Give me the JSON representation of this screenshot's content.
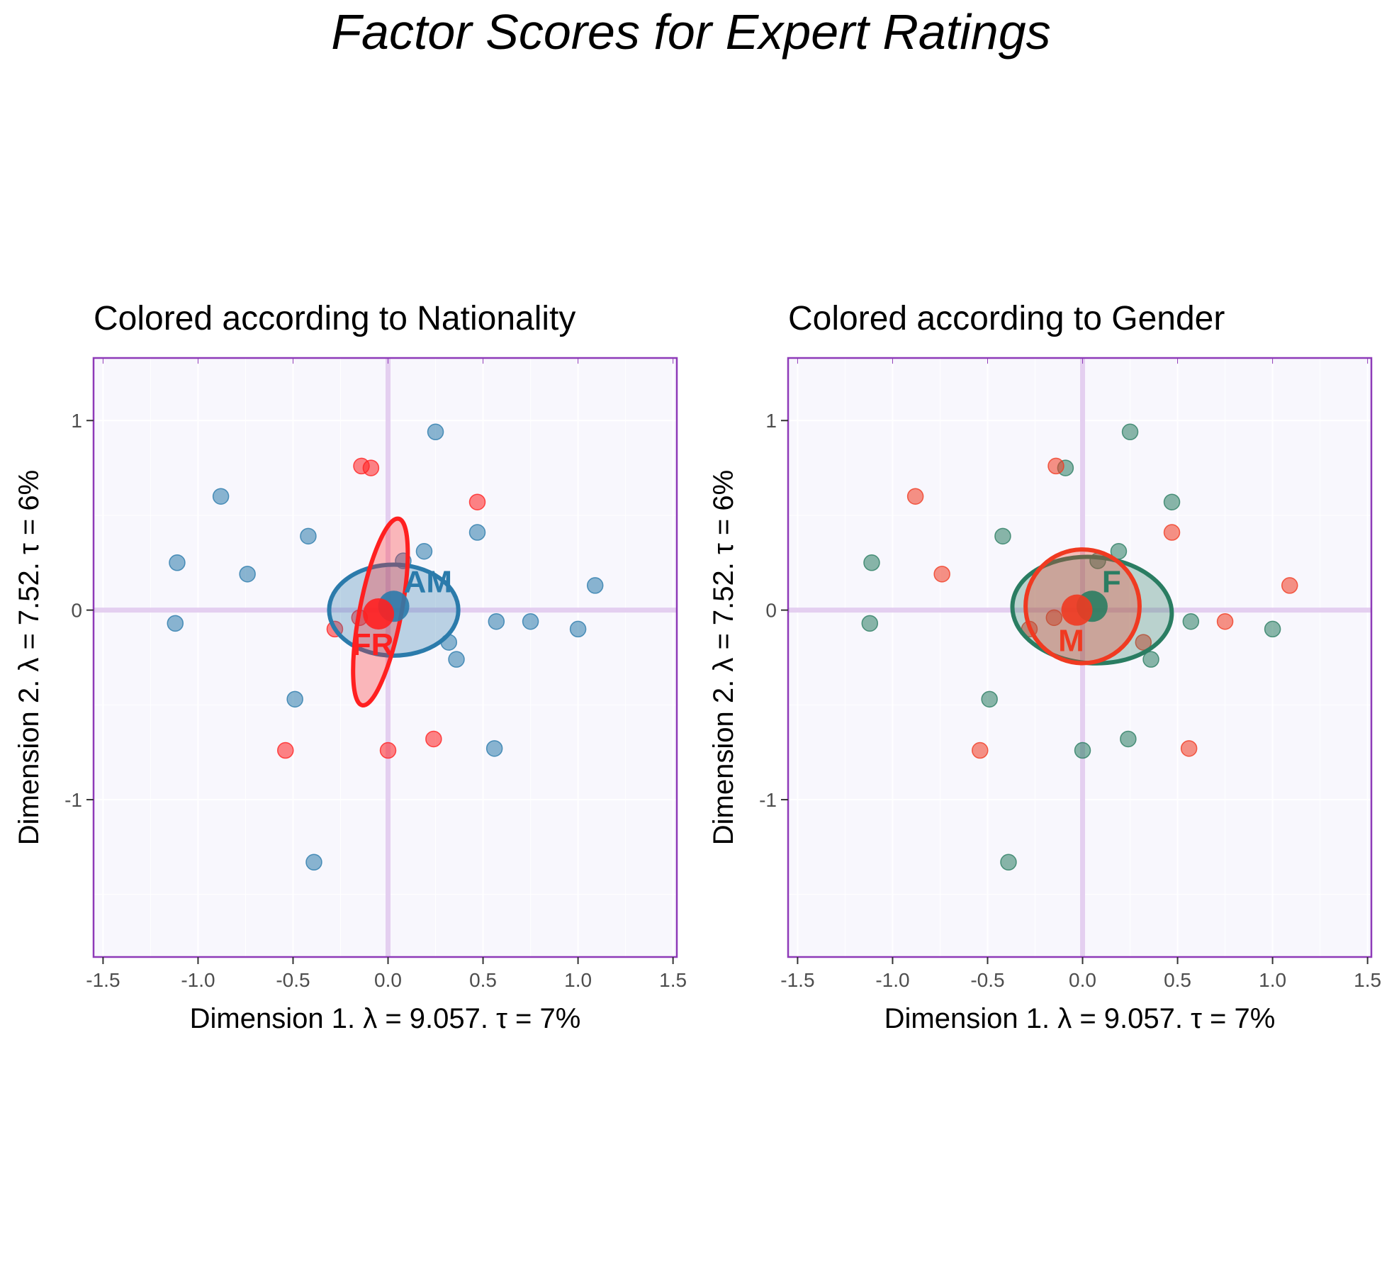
{
  "title": "Factor Scores for Expert Ratings",
  "colors": {
    "panel_background": "#f8f7fd",
    "panel_border": "#8e3ab8",
    "origin_line": "#e4cff0",
    "grid": "#ffffff"
  },
  "chart_data": [
    {
      "type": "scatter",
      "title": "Colored according to Nationality",
      "xlabel": "Dimension 1.   λ = 9.057.  τ = 7%",
      "ylabel": "Dimension 2.   λ = 7.52.  τ = 6%",
      "xlim": [
        -1.55,
        1.52
      ],
      "ylim": [
        -1.83,
        1.33
      ],
      "x_ticks": [
        -1.5,
        -1.0,
        -0.5,
        0.0,
        0.5,
        1.0,
        1.5
      ],
      "x_tick_labels": [
        "-1.5",
        "-1.0",
        "-0.5",
        "0.0",
        "0.5",
        "1.0",
        "1.5"
      ],
      "y_ticks": [
        -1,
        0,
        1
      ],
      "y_tick_labels": [
        "-1",
        "0",
        "1"
      ],
      "grid": true,
      "series": [
        {
          "name": "AM",
          "color": "#2b7bab",
          "points": [
            [
              0.25,
              0.94
            ],
            [
              -0.88,
              0.6
            ],
            [
              -1.11,
              0.25
            ],
            [
              -0.74,
              0.19
            ],
            [
              -0.42,
              0.39
            ],
            [
              0.47,
              0.41
            ],
            [
              0.08,
              0.26
            ],
            [
              0.19,
              0.31
            ],
            [
              1.09,
              0.13
            ],
            [
              -1.12,
              -0.07
            ],
            [
              0.57,
              -0.06
            ],
            [
              0.75,
              -0.06
            ],
            [
              1.0,
              -0.1
            ],
            [
              0.32,
              -0.17
            ],
            [
              0.36,
              -0.26
            ],
            [
              -0.49,
              -0.47
            ],
            [
              0.56,
              -0.73
            ],
            [
              -0.39,
              -1.33
            ]
          ],
          "mean": [
            0.03,
            0.02
          ],
          "ellipse": {
            "center": [
              0.03,
              0.0
            ],
            "rx": 0.34,
            "ry": 0.24,
            "angle_deg": 0
          }
        },
        {
          "name": "FR",
          "color": "#ff2020",
          "points": [
            [
              -0.14,
              0.76
            ],
            [
              -0.09,
              0.75
            ],
            [
              0.47,
              0.57
            ],
            [
              -0.28,
              -0.1
            ],
            [
              -0.15,
              -0.04
            ],
            [
              -0.54,
              -0.74
            ],
            [
              0.0,
              -0.74
            ],
            [
              0.24,
              -0.68
            ]
          ],
          "mean": [
            -0.05,
            -0.02
          ],
          "ellipse": {
            "center": [
              -0.04,
              -0.01
            ],
            "rx": 0.5,
            "ry": 0.11,
            "angle_deg": 79
          }
        }
      ]
    },
    {
      "type": "scatter",
      "title": "Colored according to Gender",
      "xlabel": "Dimension 1.   λ = 9.057.  τ = 7%",
      "ylabel": "Dimension 2.   λ = 7.52.  τ = 6%",
      "xlim": [
        -1.55,
        1.52
      ],
      "ylim": [
        -1.83,
        1.33
      ],
      "x_ticks": [
        -1.5,
        -1.0,
        -0.5,
        0.0,
        0.5,
        1.0,
        1.5
      ],
      "x_tick_labels": [
        "-1.5",
        "-1.0",
        "-0.5",
        "0.0",
        "0.5",
        "1.0",
        "1.5"
      ],
      "y_ticks": [
        -1,
        0,
        1
      ],
      "y_tick_labels": [
        "-1",
        "0",
        "1"
      ],
      "grid": true,
      "series": [
        {
          "name": "F",
          "color": "#2a7d62",
          "points": [
            [
              0.25,
              0.94
            ],
            [
              -0.09,
              0.75
            ],
            [
              0.47,
              0.57
            ],
            [
              -0.42,
              0.39
            ],
            [
              0.19,
              0.31
            ],
            [
              0.08,
              0.26
            ],
            [
              -1.11,
              0.25
            ],
            [
              -1.12,
              -0.07
            ],
            [
              0.57,
              -0.06
            ],
            [
              1.0,
              -0.1
            ],
            [
              0.36,
              -0.26
            ],
            [
              -0.49,
              -0.47
            ],
            [
              0.24,
              -0.68
            ],
            [
              0.0,
              -0.74
            ],
            [
              -0.39,
              -1.33
            ]
          ],
          "mean": [
            0.05,
            0.02
          ],
          "ellipse": {
            "center": [
              0.05,
              0.0
            ],
            "rx": 0.42,
            "ry": 0.28,
            "angle_deg": -4
          }
        },
        {
          "name": "M",
          "color": "#f03a21",
          "points": [
            [
              -0.14,
              0.76
            ],
            [
              -0.88,
              0.6
            ],
            [
              0.47,
              0.41
            ],
            [
              -0.74,
              0.19
            ],
            [
              1.09,
              0.13
            ],
            [
              -0.15,
              -0.04
            ],
            [
              -0.28,
              -0.1
            ],
            [
              0.75,
              -0.06
            ],
            [
              0.32,
              -0.17
            ],
            [
              -0.54,
              -0.74
            ],
            [
              0.56,
              -0.73
            ]
          ],
          "mean": [
            -0.03,
            0.0
          ],
          "ellipse": {
            "center": [
              0.0,
              0.02
            ],
            "rx": 0.3,
            "ry": 0.3,
            "angle_deg": 0
          }
        }
      ]
    }
  ]
}
